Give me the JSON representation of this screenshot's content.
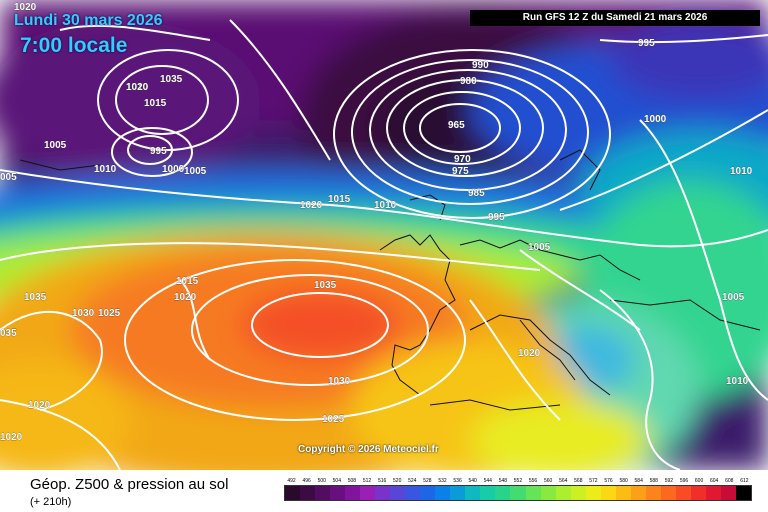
{
  "header": {
    "date": "Lundi 30 mars 2026",
    "time": "7:00 locale",
    "run": "Run GFS 12 Z du Samedi 21 mars 2026"
  },
  "copyright": "Copyright © 2026 Meteociel.fr",
  "footer": {
    "caption": "Géop. Z500 & pression au sol",
    "sub": "(+ 210h)"
  },
  "isobar_labels": [
    "1020",
    "1010",
    "1035",
    "1020",
    "1015",
    "1005",
    "995",
    "1000",
    "1005",
    "1010",
    "005",
    "990",
    "980",
    "965",
    "970",
    "975",
    "985",
    "995",
    "995",
    "1000",
    "1010",
    "1015",
    "1020",
    "1010",
    "1005",
    "1015",
    "1020",
    "1035",
    "1035",
    "1030",
    "1025",
    "1030",
    "1025",
    "035",
    "1020",
    "1020",
    "1020",
    "1005",
    "1010"
  ],
  "legend": {
    "values": [
      "492",
      "496",
      "500",
      "504",
      "508",
      "512",
      "516",
      "520",
      "524",
      "528",
      "532",
      "536",
      "540",
      "544",
      "548",
      "552",
      "556",
      "560",
      "564",
      "568",
      "572",
      "576",
      "580",
      "584",
      "588",
      "592",
      "596",
      "600",
      "604",
      "608",
      "612"
    ],
    "colors": [
      "#2a0a2a",
      "#3d0a46",
      "#520c62",
      "#6a0f80",
      "#82149c",
      "#9a1fb4",
      "#7a33c8",
      "#5a46d6",
      "#3a55e0",
      "#1f66e6",
      "#0a80e8",
      "#0a9cd8",
      "#10b8c2",
      "#18cca8",
      "#28d48c",
      "#44dc70",
      "#64e456",
      "#88ea40",
      "#acee30",
      "#ccf024",
      "#ecec18",
      "#fcd814",
      "#fcbc14",
      "#fca018",
      "#fc841c",
      "#fc6820",
      "#f84c24",
      "#f03028",
      "#e01830",
      "#c80c38",
      "#000000"
    ]
  }
}
